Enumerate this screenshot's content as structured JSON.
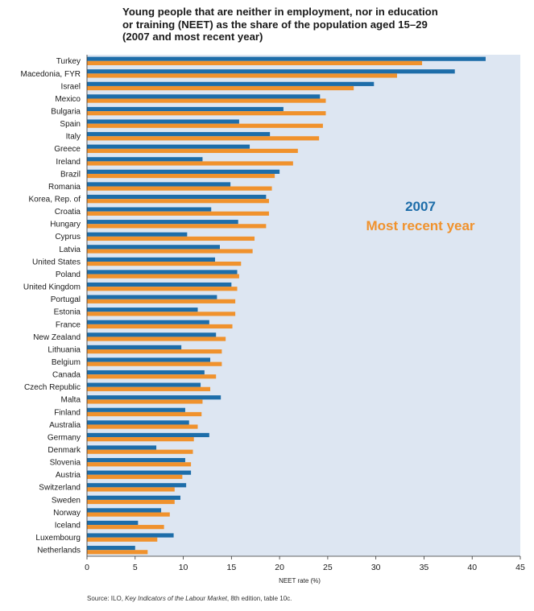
{
  "title_lines": [
    "Young people that are neither in employment, nor in education",
    "or training (NEET) as the share of the population aged 15–29",
    "(2007 and most recent year)"
  ],
  "source": {
    "prefix": "Source: ILO, ",
    "italic": "Key Indicators of the Labour Market",
    "suffix": ", 8th edition, table 10c."
  },
  "colors": {
    "series_2007": "#1d6da9",
    "series_recent": "#f0922d",
    "plot_bg": "#dde6f2"
  },
  "chart_data": {
    "type": "bar",
    "orientation": "horizontal",
    "title": "Young people that are neither in employment, nor in education or training (NEET) as the share of the population aged 15–29 (2007 and most recent year)",
    "xlabel": "NEET rate (%)",
    "ylabel": "",
    "xlim": [
      0,
      45
    ],
    "xticks": [
      0,
      5,
      10,
      15,
      20,
      25,
      30,
      35,
      40,
      45
    ],
    "legend": {
      "placement": "upper-right, inside plot",
      "entries": [
        "2007",
        "Most recent year"
      ]
    },
    "categories": [
      "Turkey",
      "Macedonia, FYR",
      "Israel",
      "Mexico",
      "Bulgaria",
      "Spain",
      "Italy",
      "Greece",
      "Ireland",
      "Brazil",
      "Romania",
      "Korea, Rep. of",
      "Croatia",
      "Hungary",
      "Cyprus",
      "Latvia",
      "United States",
      "Poland",
      "United Kingdom",
      "Portugal",
      "Estonia",
      "France",
      "New Zealand",
      "Lithuania",
      "Belgium",
      "Canada",
      "Czech Republic",
      "Malta",
      "Finland",
      "Australia",
      "Germany",
      "Denmark",
      "Slovenia",
      "Austria",
      "Switzerland",
      "Sweden",
      "Norway",
      "Iceland",
      "Luxembourg",
      "Netherlands"
    ],
    "series": [
      {
        "name": "2007",
        "values": [
          41.4,
          38.2,
          29.8,
          24.2,
          20.4,
          15.8,
          19.0,
          16.9,
          12.0,
          20.0,
          14.9,
          18.6,
          12.9,
          15.7,
          10.4,
          13.8,
          13.3,
          15.6,
          15.0,
          13.5,
          11.5,
          12.7,
          13.4,
          9.8,
          12.8,
          12.2,
          11.8,
          13.9,
          10.2,
          10.6,
          12.7,
          7.2,
          10.2,
          10.8,
          10.3,
          9.7,
          7.7,
          5.3,
          9.0,
          5.0
        ]
      },
      {
        "name": "Most recent year",
        "values": [
          34.8,
          32.2,
          27.7,
          24.8,
          24.8,
          24.5,
          24.1,
          21.9,
          21.4,
          19.5,
          19.2,
          18.9,
          18.9,
          18.6,
          17.4,
          17.2,
          16.0,
          15.8,
          15.6,
          15.4,
          15.4,
          15.1,
          14.4,
          14.0,
          14.0,
          13.4,
          12.8,
          12.0,
          11.9,
          11.5,
          11.1,
          11.0,
          10.8,
          9.9,
          9.1,
          9.1,
          8.6,
          8.0,
          7.3,
          6.3
        ]
      }
    ]
  }
}
